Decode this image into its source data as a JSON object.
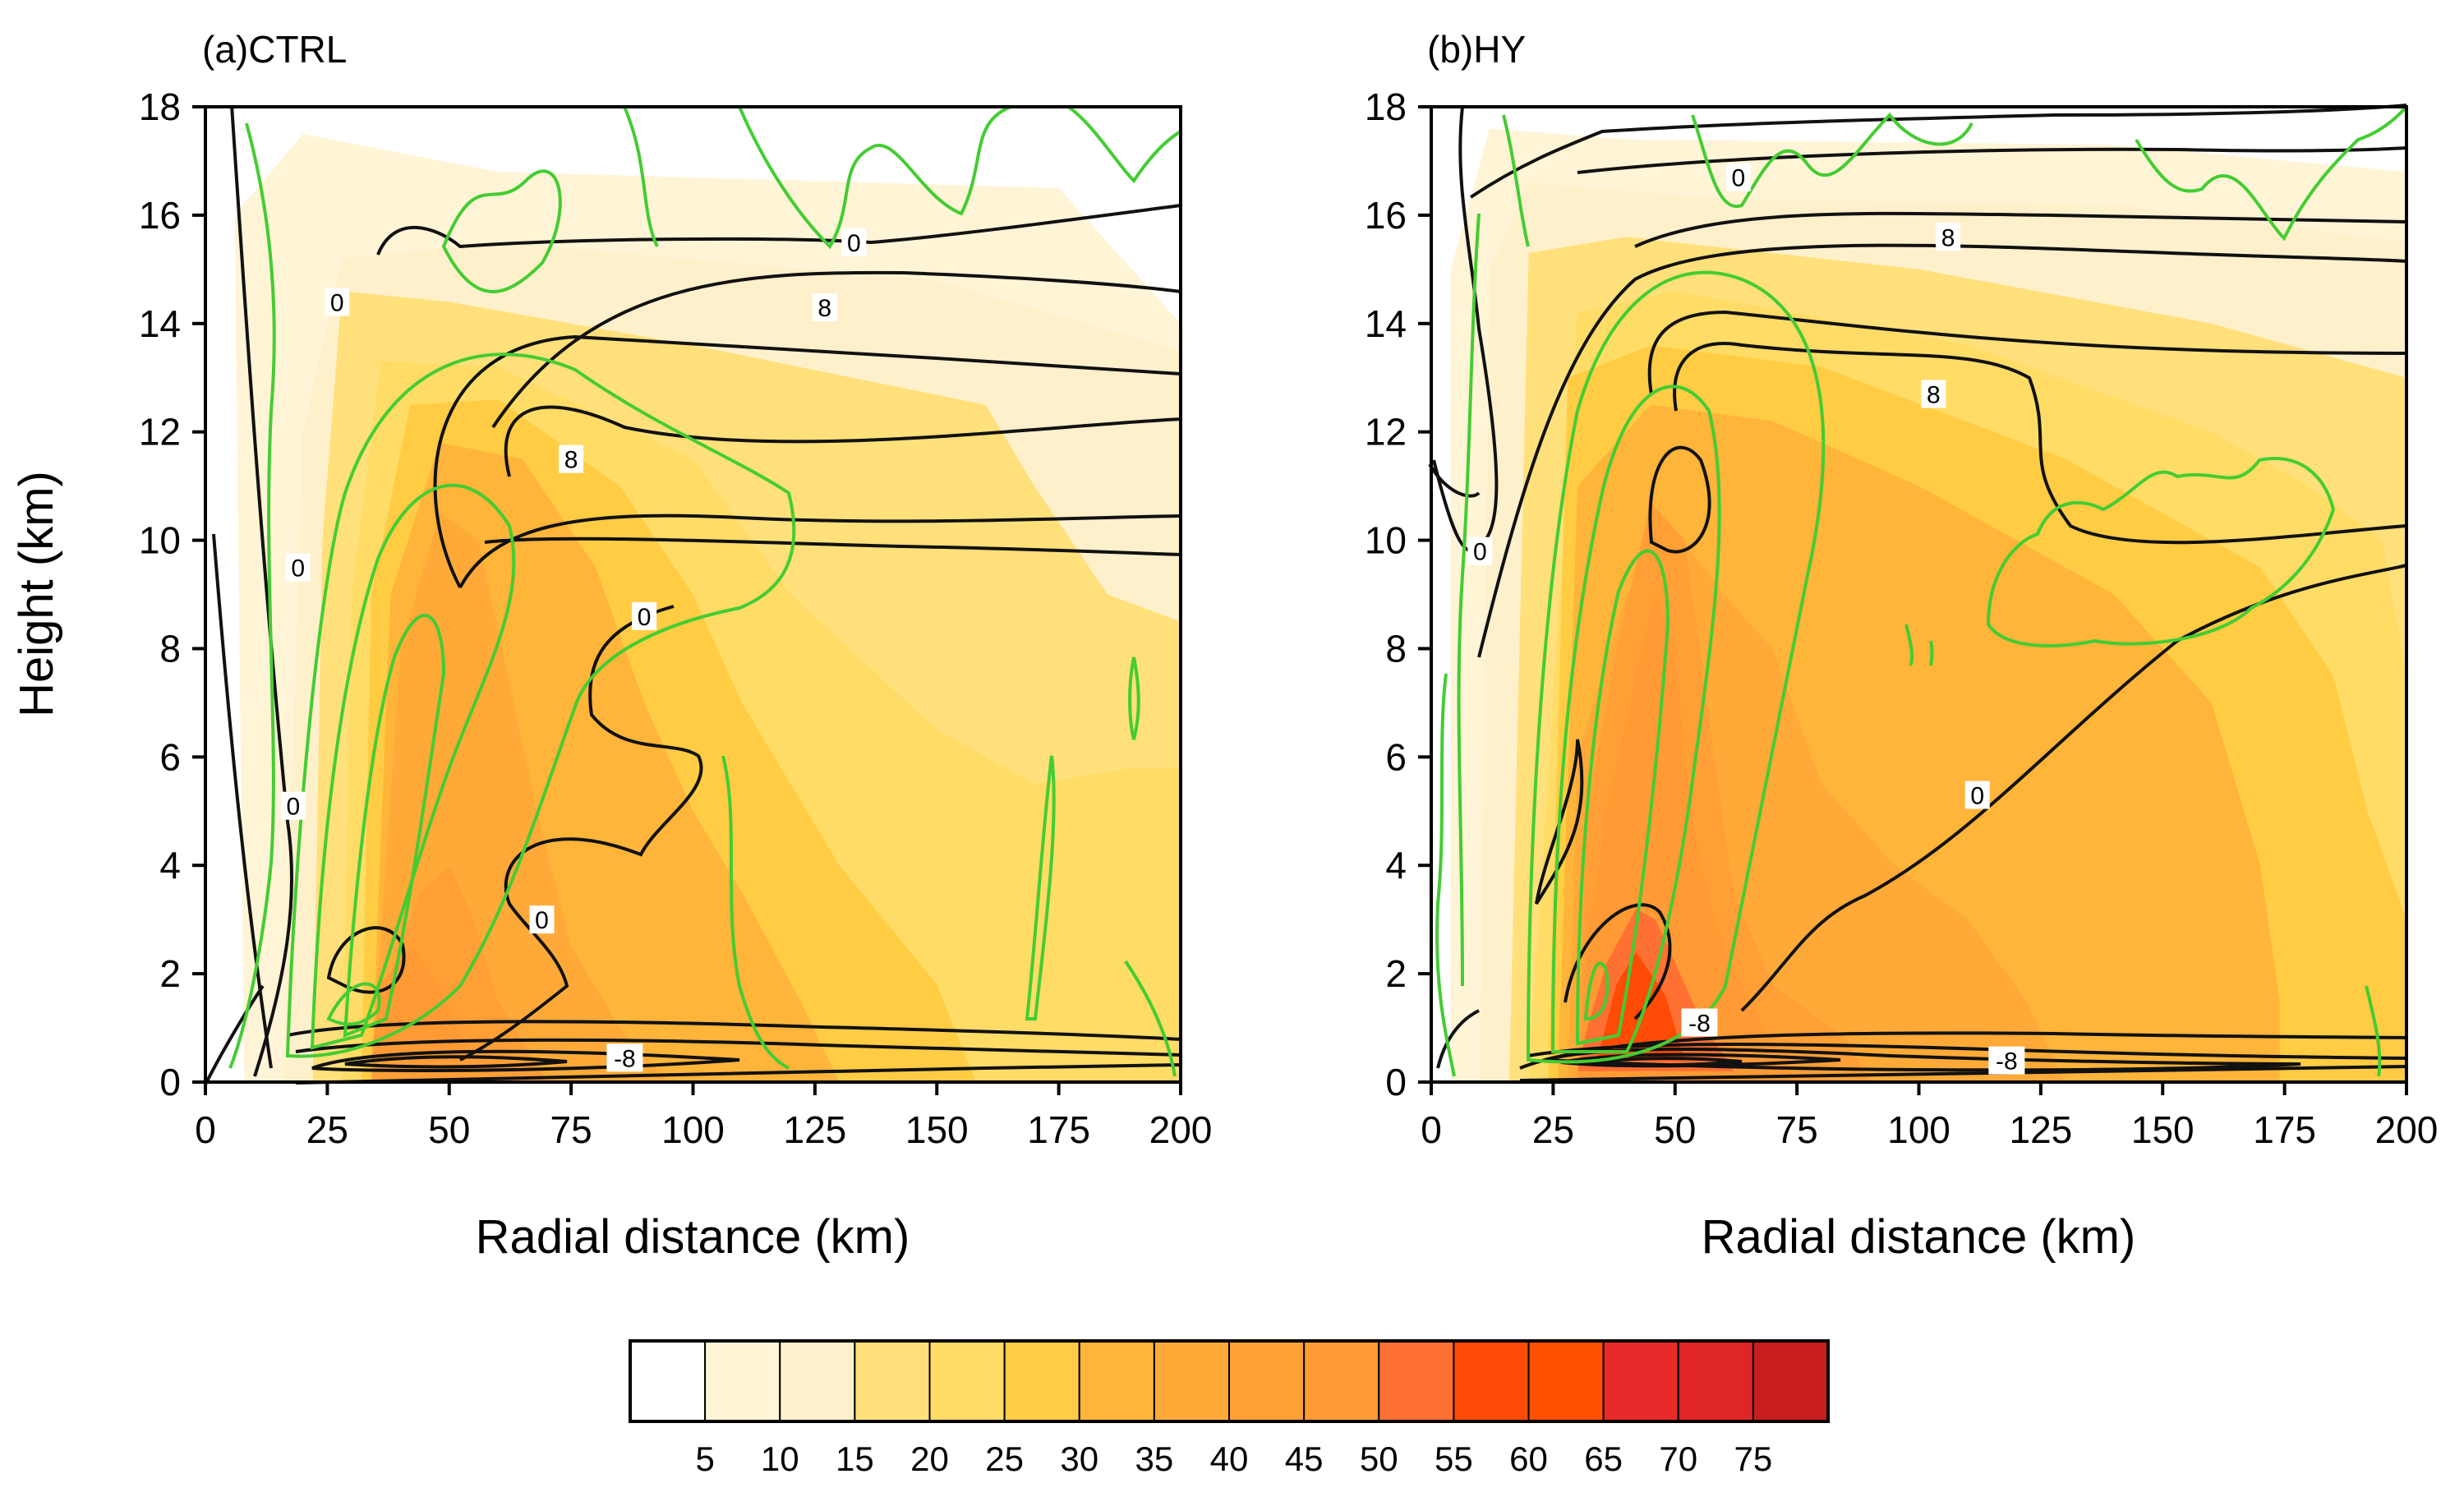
{
  "chart_data": [
    {
      "type": "heatmap",
      "title": "(a)CTRL",
      "xlabel": "Radial distance (km)",
      "ylabel": "Height (km)",
      "xlim": [
        0,
        200
      ],
      "ylim": [
        0,
        18
      ],
      "xticks": [
        0,
        25,
        50,
        75,
        100,
        125,
        150,
        175,
        200
      ],
      "yticks": [
        0,
        2,
        4,
        6,
        8,
        10,
        12,
        14,
        16,
        18
      ],
      "shading": [
        {
          "level": 10,
          "points": [
            [
              8,
              0
            ],
            [
              200,
              0
            ],
            [
              200,
              14
            ],
            [
              175,
              16.5
            ],
            [
              60,
              16.8
            ],
            [
              20,
              17.5
            ],
            [
              6,
              16
            ]
          ]
        },
        {
          "level": 15,
          "points": [
            [
              16,
              0
            ],
            [
              200,
              0
            ],
            [
              200,
              13.5
            ],
            [
              150,
              14.8
            ],
            [
              60,
              15.5
            ],
            [
              28,
              15.2
            ],
            [
              20,
              12
            ]
          ]
        },
        {
          "level": 20,
          "points": [
            [
              22,
              0
            ],
            [
              200,
              0
            ],
            [
              200,
              8.5
            ],
            [
              185,
              9
            ],
            [
              170,
              11
            ],
            [
              160,
              12.5
            ],
            [
              100,
              13.6
            ],
            [
              50,
              14.4
            ],
            [
              28,
              14.6
            ],
            [
              24,
              10
            ]
          ]
        },
        {
          "level": 25,
          "points": [
            [
              28,
              0
            ],
            [
              200,
              0
            ],
            [
              200,
              5.8
            ],
            [
              190,
              5.8
            ],
            [
              170,
              5.5
            ],
            [
              150,
              6.5
            ],
            [
              120,
              9
            ],
            [
              100,
              11.5
            ],
            [
              60,
              13.2
            ],
            [
              36,
              13.3
            ],
            [
              30,
              9
            ]
          ]
        },
        {
          "level": 30,
          "points": [
            [
              32,
              0
            ],
            [
              158,
              0
            ],
            [
              150,
              1.8
            ],
            [
              130,
              4
            ],
            [
              110,
              7
            ],
            [
              100,
              9
            ],
            [
              85,
              11
            ],
            [
              60,
              12.6
            ],
            [
              42,
              12.5
            ],
            [
              34,
              9
            ]
          ]
        },
        {
          "level": 35,
          "points": [
            [
              34,
              0
            ],
            [
              130,
              0
            ],
            [
              122,
              1.5
            ],
            [
              110,
              3.5
            ],
            [
              100,
              5
            ],
            [
              90,
              7
            ],
            [
              80,
              9.5
            ],
            [
              65,
              11.5
            ],
            [
              48,
              11.8
            ],
            [
              38,
              9
            ]
          ]
        },
        {
          "level": 40,
          "points": [
            [
              34,
              0
            ],
            [
              95,
              0
            ],
            [
              85,
              1
            ],
            [
              75,
              2.5
            ],
            [
              68,
              5
            ],
            [
              62,
              7.5
            ],
            [
              56,
              10
            ],
            [
              48,
              10.5
            ],
            [
              40,
              8
            ]
          ]
        },
        {
          "level": 45,
          "points": [
            [
              34,
              0
            ],
            [
              70,
              0
            ],
            [
              60,
              1.5
            ],
            [
              55,
              3
            ],
            [
              50,
              4
            ],
            [
              44,
              3.5
            ],
            [
              38,
              2
            ]
          ]
        },
        {
          "level": 50,
          "points": [
            [
              34,
              0.4
            ],
            [
              55,
              0.4
            ],
            [
              48,
              1.8
            ],
            [
              42,
              2.5
            ],
            [
              36,
              1.8
            ]
          ]
        }
      ],
      "contour_labels": [
        {
          "text": "0",
          "x": 133,
          "y": 15.5
        },
        {
          "text": "8",
          "x": 127,
          "y": 14.3
        },
        {
          "text": "8",
          "x": 75,
          "y": 11.5
        },
        {
          "text": "0",
          "x": 90,
          "y": 8.6
        },
        {
          "text": "0",
          "x": 27,
          "y": 14.4
        },
        {
          "text": "0",
          "x": 19,
          "y": 9.5
        },
        {
          "text": "0",
          "x": 18,
          "y": 5.1
        },
        {
          "text": "0",
          "x": 69,
          "y": 3
        },
        {
          "text": "-8",
          "x": 86,
          "y": 0.45
        }
      ]
    },
    {
      "type": "heatmap",
      "title": "(b)HY",
      "xlabel": "Radial distance (km)",
      "ylabel": "",
      "xlim": [
        0,
        200
      ],
      "ylim": [
        0,
        18
      ],
      "xticks": [
        0,
        25,
        50,
        75,
        100,
        125,
        150,
        175,
        200
      ],
      "yticks": [
        0,
        2,
        4,
        6,
        8,
        10,
        12,
        14,
        16,
        18
      ],
      "shading": [
        {
          "level": 10,
          "points": [
            [
              4,
              0
            ],
            [
              200,
              0
            ],
            [
              200,
              16.8
            ],
            [
              140,
              17.3
            ],
            [
              40,
              17.4
            ],
            [
              12,
              17.6
            ],
            [
              4,
              15
            ]
          ]
        },
        {
          "level": 15,
          "points": [
            [
              10,
              0
            ],
            [
              200,
              0
            ],
            [
              200,
              15.5
            ],
            [
              140,
              16.2
            ],
            [
              60,
              16.3
            ],
            [
              20,
              16.6
            ],
            [
              12,
              15
            ]
          ]
        },
        {
          "level": 20,
          "points": [
            [
              16,
              0
            ],
            [
              200,
              0
            ],
            [
              200,
              13
            ],
            [
              160,
              14
            ],
            [
              100,
              15
            ],
            [
              40,
              15.6
            ],
            [
              20,
              15.3
            ]
          ]
        },
        {
          "level": 25,
          "points": [
            [
              20,
              0
            ],
            [
              200,
              0
            ],
            [
              200,
              7.5
            ],
            [
              195,
              10
            ],
            [
              180,
              11
            ],
            [
              160,
              12
            ],
            [
              110,
              13.6
            ],
            [
              50,
              14.6
            ],
            [
              30,
              14.2
            ]
          ]
        },
        {
          "level": 30,
          "points": [
            [
              24,
              0
            ],
            [
              200,
              0
            ],
            [
              200,
              3
            ],
            [
              192,
              5
            ],
            [
              185,
              7.5
            ],
            [
              170,
              9.5
            ],
            [
              130,
              11.5
            ],
            [
              80,
              13.2
            ],
            [
              45,
              13.6
            ],
            [
              28,
              13
            ]
          ]
        },
        {
          "level": 35,
          "points": [
            [
              26,
              0
            ],
            [
              174,
              0
            ],
            [
              174,
              1.5
            ],
            [
              170,
              4
            ],
            [
              160,
              7
            ],
            [
              140,
              9
            ],
            [
              100,
              11
            ],
            [
              70,
              12.2
            ],
            [
              45,
              12.5
            ],
            [
              30,
              11
            ]
          ]
        },
        {
          "level": 40,
          "points": [
            [
              28,
              0
            ],
            [
              130,
              0
            ],
            [
              122,
              1.5
            ],
            [
              110,
              3
            ],
            [
              95,
              4
            ],
            [
              80,
              5.5
            ],
            [
              70,
              8
            ],
            [
              60,
              9
            ],
            [
              50,
              10.2
            ],
            [
              40,
              9
            ],
            [
              30,
              6
            ]
          ]
        },
        {
          "level": 45,
          "points": [
            [
              30,
              0
            ],
            [
              90,
              0
            ],
            [
              85,
              0.8
            ],
            [
              70,
              1.8
            ],
            [
              62,
              3.5
            ],
            [
              58,
              6
            ],
            [
              55,
              8
            ],
            [
              52,
              10
            ],
            [
              45,
              10.7
            ],
            [
              38,
              8
            ],
            [
              32,
              5
            ]
          ]
        },
        {
          "level": 50,
          "points": [
            [
              30,
              0
            ],
            [
              75,
              0
            ],
            [
              68,
              1
            ],
            [
              60,
              2.5
            ],
            [
              55,
              4
            ],
            [
              52,
              6
            ],
            [
              50,
              8
            ],
            [
              46,
              9
            ],
            [
              42,
              7.5
            ],
            [
              36,
              5
            ],
            [
              32,
              2.5
            ]
          ]
        },
        {
          "level": 55,
          "points": [
            [
              30,
              0.2
            ],
            [
              62,
              0.2
            ],
            [
              55,
              1.2
            ],
            [
              50,
              2.2
            ],
            [
              46,
              3
            ],
            [
              42,
              3.2
            ],
            [
              36,
              2.2
            ],
            [
              32,
              1
            ]
          ]
        },
        {
          "level": 60,
          "points": [
            [
              34,
              0.4
            ],
            [
              52,
              0.4
            ],
            [
              48,
              1.6
            ],
            [
              42,
              2.4
            ],
            [
              38,
              1.8
            ]
          ]
        }
      ],
      "contour_labels": [
        {
          "text": "0",
          "x": 63,
          "y": 16.7
        },
        {
          "text": "8",
          "x": 106,
          "y": 15.6
        },
        {
          "text": "8",
          "x": 103,
          "y": 12.7
        },
        {
          "text": "0",
          "x": 10,
          "y": 9.8
        },
        {
          "text": "0",
          "x": 112,
          "y": 5.3
        },
        {
          "text": "-8",
          "x": 55,
          "y": 1.1
        },
        {
          "text": "-8",
          "x": 118,
          "y": 0.4
        }
      ]
    }
  ],
  "colorbar": {
    "tick_labels": [
      "5",
      "10",
      "15",
      "20",
      "25",
      "30",
      "35",
      "40",
      "45",
      "50",
      "55",
      "60",
      "65",
      "70",
      "75"
    ],
    "colors": [
      "#ffffff",
      "#fff4d6",
      "#fff0cc",
      "#ffe07a",
      "#ffdc66",
      "#ffcc44",
      "#ffb43a",
      "#ffaa38",
      "#ff9f36",
      "#ff9a34",
      "#ff7033",
      "#ff4b05",
      "#ff5000",
      "#e82a2a",
      "#e02525",
      "#c81e1e"
    ]
  },
  "level_colors": {
    "10": "#fff4d6",
    "15": "#fff0cc",
    "20": "#ffe07a",
    "25": "#ffdc66",
    "30": "#ffcc44",
    "35": "#ffb43a",
    "40": "#ffaa38",
    "45": "#ff9f36",
    "50": "#ff9a34",
    "55": "#ff7033",
    "60": "#ff4b05"
  },
  "line_colors": {
    "contour": "#111111",
    "green": "#44cc33"
  }
}
